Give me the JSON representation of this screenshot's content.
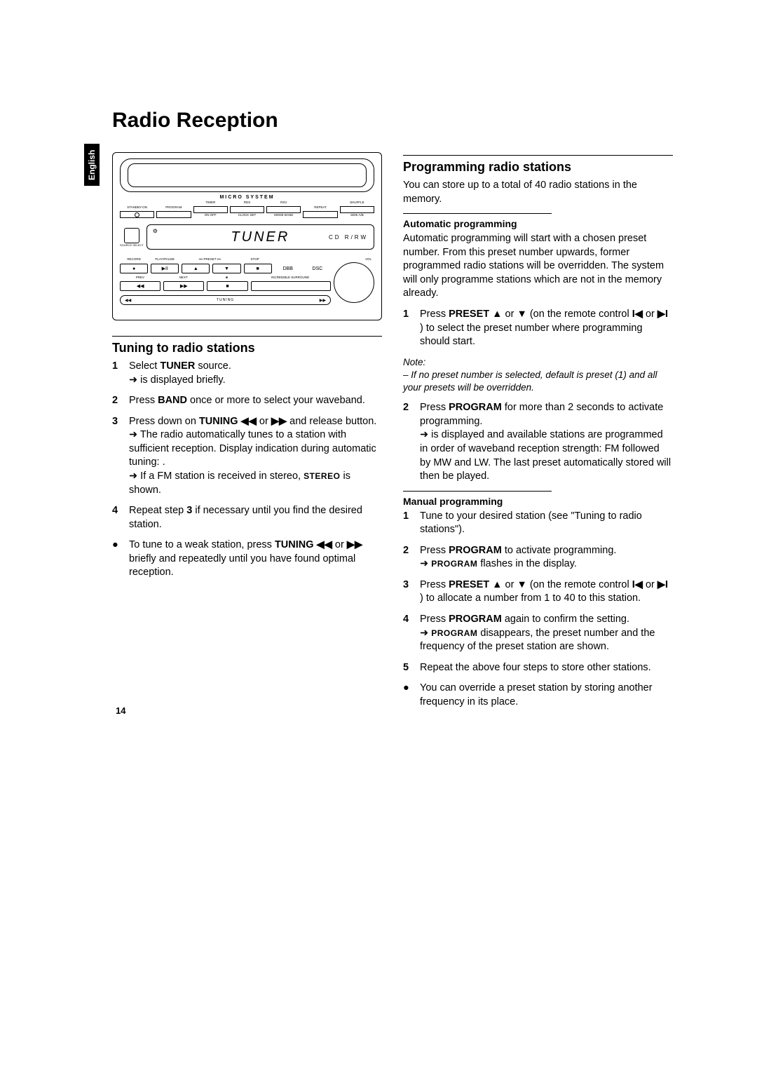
{
  "page_number": "14",
  "language_tab": "English",
  "title": "Radio Reception",
  "device": {
    "brand_line": "MICRO SYSTEM",
    "display_text": "TUNER",
    "top_buttons": [
      "STANDBY-ON",
      "PROGRAM",
      "TIMER",
      "RDS",
      "RSV",
      "REPEAT",
      "SHUFFLE"
    ],
    "top_sub": [
      "",
      "",
      "ON OFF",
      "CLOCK SET",
      "MODE BAND",
      "",
      "SIDE A/B"
    ],
    "source_label": "SOURCE SELECT",
    "cd_label": "CD R/RW",
    "sat_label": "⚙",
    "transport_labels_row1": [
      "RECORD",
      "PLAY•PAUSE",
      "",
      "STOP",
      "",
      ""
    ],
    "preset_header": "PRESET",
    "transport_row1": [
      "●",
      "▶II",
      "",
      "■",
      "",
      ""
    ],
    "transport_sub_row1": [
      "",
      "",
      "",
      "",
      "DBB",
      "DSC"
    ],
    "transport_labels_row2": [
      "PREV",
      "NEXT",
      "■",
      ""
    ],
    "transport_row2": [
      "◀◀",
      "▶▶",
      "■",
      "INCREDIBLE SURROUND"
    ],
    "tuning_left": "◀◀",
    "tuning_mid": "TUNING",
    "tuning_right": "▶▶",
    "vol_label": "VOL"
  },
  "left": {
    "heading": "Tuning to radio stations",
    "steps": [
      {
        "n": "1",
        "parts": [
          "Select ",
          {
            "b": "TUNER"
          },
          " source."
        ],
        "cont": [
          {
            "arrow": "➜"
          },
          "              is displayed briefly."
        ]
      },
      {
        "n": "2",
        "parts": [
          "Press ",
          {
            "b": "BAND"
          },
          " once or more to select your waveband."
        ]
      },
      {
        "n": "3",
        "parts": [
          "Press down on ",
          {
            "b": "TUNING ◀◀"
          },
          " or ",
          {
            "b": "▶▶"
          },
          " and release button."
        ],
        "cont": [
          {
            "arrow": "➜"
          },
          " The radio automatically tunes to a station with sufficient reception. Display indication during automatic tuning:            ."
        ],
        "cont2": [
          {
            "arrow": "➜"
          },
          " If a FM station is received in stereo, ",
          {
            "sc": "STEREO"
          },
          " is shown."
        ]
      },
      {
        "n": "4",
        "parts": [
          "Repeat step ",
          {
            "b": "3"
          },
          " if necessary until you find the desired station."
        ]
      },
      {
        "n": "●",
        "parts": [
          "To tune to a weak station, press ",
          {
            "b": "TUNING ◀◀"
          },
          " or ",
          {
            "b": "▶▶"
          },
          " briefly and repeatedly until you have found optimal reception."
        ]
      }
    ]
  },
  "right": {
    "heading": "Programming radio stations",
    "intro": "You can store up to a total of 40 radio stations in the memory.",
    "auto": {
      "heading": "Automatic programming",
      "intro": "Automatic programming will start with a chosen preset number. From this preset number upwards, former programmed radio stations will be overridden. The system will only programme stations which are not in the memory already.",
      "steps": [
        {
          "n": "1",
          "parts": [
            "Press ",
            {
              "b": "PRESET ▲"
            },
            " or ",
            {
              "b": "▼"
            },
            " (on the remote control ",
            {
              "b": "I◀"
            },
            " or ",
            {
              "b": "▶I"
            },
            " ) to select the preset number where programming should start."
          ]
        }
      ],
      "note_label": "Note:",
      "note_body": "– If no preset number is selected, default is preset (1) and all your presets will be overridden.",
      "steps2": [
        {
          "n": "2",
          "parts": [
            "Press ",
            {
              "b": "PROGRAM"
            },
            " for more than 2 seconds to activate programming."
          ],
          "cont": [
            {
              "arrow": "➜"
            },
            "           is displayed and available stations are programmed in order of waveband reception strength: FM followed by MW and LW. The last preset automatically stored will then be played."
          ]
        }
      ]
    },
    "manual": {
      "heading": "Manual programming",
      "steps": [
        {
          "n": "1",
          "parts": [
            "Tune to your desired station (see \"Tuning to radio stations\")."
          ]
        },
        {
          "n": "2",
          "parts": [
            "Press ",
            {
              "b": "PROGRAM"
            },
            " to activate programming."
          ],
          "cont": [
            {
              "arrow": "➜"
            },
            " ",
            {
              "sc": "PROGRAM"
            },
            " flashes in the display."
          ]
        },
        {
          "n": "3",
          "parts": [
            "Press ",
            {
              "b": "PRESET ▲"
            },
            " or ",
            {
              "b": "▼"
            },
            " (on the remote control ",
            {
              "b": "I◀"
            },
            " or ",
            {
              "b": "▶I"
            },
            " ) to allocate a number from 1 to 40 to this station."
          ]
        },
        {
          "n": "4",
          "parts": [
            "Press ",
            {
              "b": "PROGRAM"
            },
            " again to confirm the setting."
          ],
          "cont": [
            {
              "arrow": "➜"
            },
            " ",
            {
              "sc": "PROGRAM"
            },
            " disappears, the preset number and the frequency of the preset station are shown."
          ]
        },
        {
          "n": "5",
          "parts": [
            "Repeat the above four steps to store other stations."
          ]
        },
        {
          "n": "●",
          "parts": [
            "You can override a preset station by storing another frequency in its place."
          ]
        }
      ]
    }
  }
}
